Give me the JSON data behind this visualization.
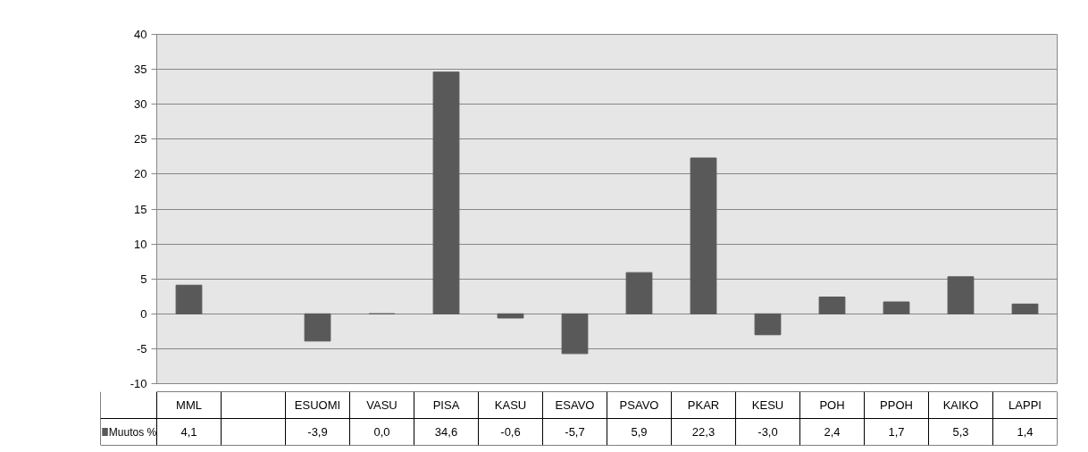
{
  "chart_data": {
    "type": "bar",
    "categories": [
      "MML",
      null,
      "ESUOMI",
      "VASU",
      "PISA",
      "KASU",
      "ESAVO",
      "PSAVO",
      "PKAR",
      "KESU",
      "POH",
      "PPOH",
      "KAIKO",
      "LAPPI"
    ],
    "series": [
      {
        "name": "Muutos %",
        "color": "#595959",
        "values": [
          4.1,
          null,
          -3.9,
          0.0,
          34.6,
          -0.6,
          -5.7,
          5.9,
          22.3,
          -3.0,
          2.4,
          1.7,
          5.3,
          1.4
        ],
        "value_labels": [
          "4,1",
          null,
          "-3,9",
          "0,0",
          "34,6",
          "-0,6",
          "-5,7",
          "5,9",
          "22,3",
          "-3,0",
          "2,4",
          "1,7",
          "5,3",
          "1,4"
        ]
      }
    ],
    "ylim": [
      -10,
      40
    ],
    "yticks": [
      -10,
      -5,
      0,
      5,
      10,
      15,
      20,
      25,
      30,
      35,
      40
    ],
    "grid": "y",
    "legend": "bottom left"
  }
}
